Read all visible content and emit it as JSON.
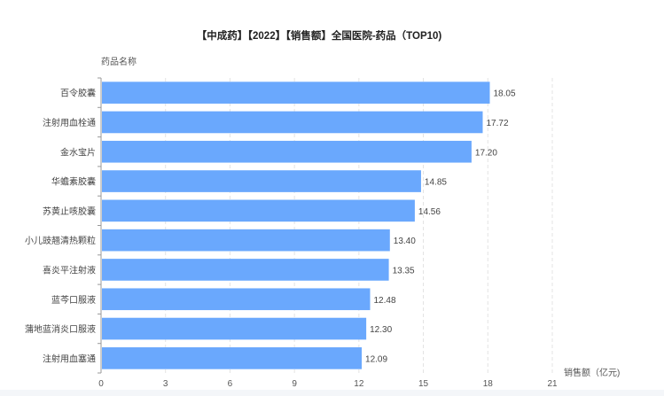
{
  "chart_data": {
    "type": "bar",
    "orientation": "horizontal",
    "title": "【中成药】【2022】【销售额】全国医院-药品（TOP10)",
    "ylabel": "药品名称",
    "xlabel": "销售额（亿元)",
    "categories": [
      "百令胶囊",
      "注射用血栓通",
      "金水宝片",
      "华蟾素胶囊",
      "苏黄止咳胶囊",
      "小儿豉翘清热颗粒",
      "喜炎平注射液",
      "蓝芩口服液",
      "蒲地蓝消炎口服液",
      "注射用血塞通"
    ],
    "values": [
      18.05,
      17.72,
      17.2,
      14.85,
      14.56,
      13.4,
      13.35,
      12.48,
      12.3,
      12.09
    ],
    "value_labels": [
      "18.05",
      "17.72",
      "17.20",
      "14.85",
      "14.56",
      "13.40",
      "13.35",
      "12.48",
      "12.30",
      "12.09"
    ],
    "xlim": [
      0,
      21
    ],
    "xticks": [
      "0",
      "3",
      "6",
      "9",
      "12",
      "15",
      "18",
      "21"
    ],
    "grid": true,
    "bar_color": "#6aa8fd"
  }
}
